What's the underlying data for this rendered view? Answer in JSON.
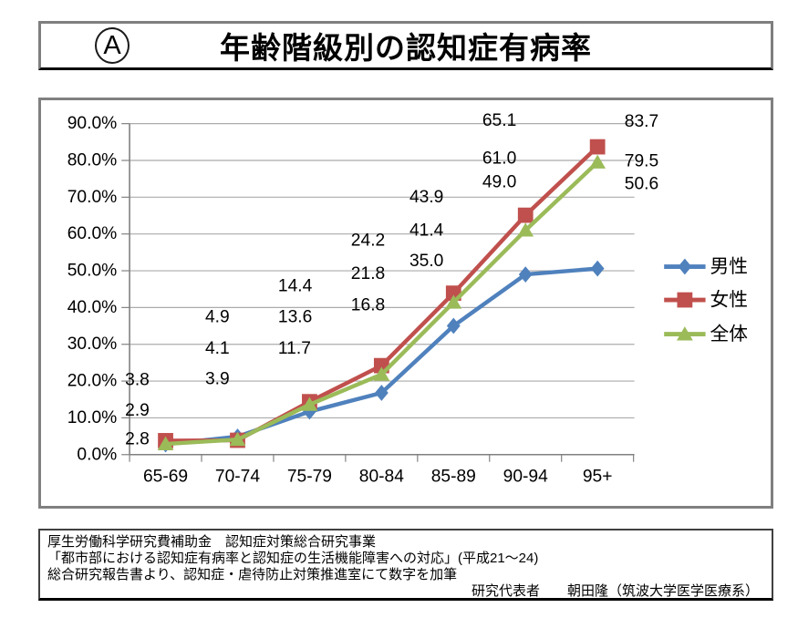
{
  "header": {
    "badge": "A",
    "title": "年齢階級別の認知症有病率"
  },
  "chart_data": {
    "type": "line",
    "title": "年齢階級別の認知症有病率",
    "categories": [
      "65-69",
      "70-74",
      "75-79",
      "80-84",
      "85-89",
      "90-94",
      "95+"
    ],
    "series": [
      {
        "key": "male",
        "name": "男性",
        "marker": "diamond",
        "color": "#4f81bd",
        "values": [
          2.8,
          4.9,
          11.7,
          16.8,
          35.0,
          49.0,
          50.6
        ]
      },
      {
        "key": "female",
        "name": "女性",
        "marker": "square",
        "color": "#c0504d",
        "values": [
          3.8,
          3.9,
          14.4,
          24.2,
          43.9,
          65.1,
          83.7
        ]
      },
      {
        "key": "total",
        "name": "全体",
        "marker": "triangle",
        "color": "#9bbb59",
        "values": [
          2.9,
          4.1,
          13.6,
          21.8,
          41.4,
          61.0,
          79.5
        ]
      }
    ],
    "ylim": [
      0,
      90
    ],
    "y_tick_labels": [
      "0.0%",
      "10.0%",
      "20.0%",
      "30.0%",
      "40.0%",
      "50.0%",
      "60.0%",
      "70.0%",
      "80.0%",
      "90.0%"
    ],
    "grid": true,
    "legend_position": "right",
    "data_labels_shown": true,
    "grid_color": "#ababab",
    "axis_color": "#808080"
  },
  "footer": {
    "lines": [
      "厚生労働科学研究費補助金　認知症対策総合研究事業",
      "「都市部における認知症有病率と認知症の生活機能障害への対応」(平成21～24)",
      "総合研究報告書より、認知症・虐待防止対策推進室にて数字を加筆"
    ],
    "credit": "研究代表者　　朝田隆（筑波大学医学医療系）"
  }
}
